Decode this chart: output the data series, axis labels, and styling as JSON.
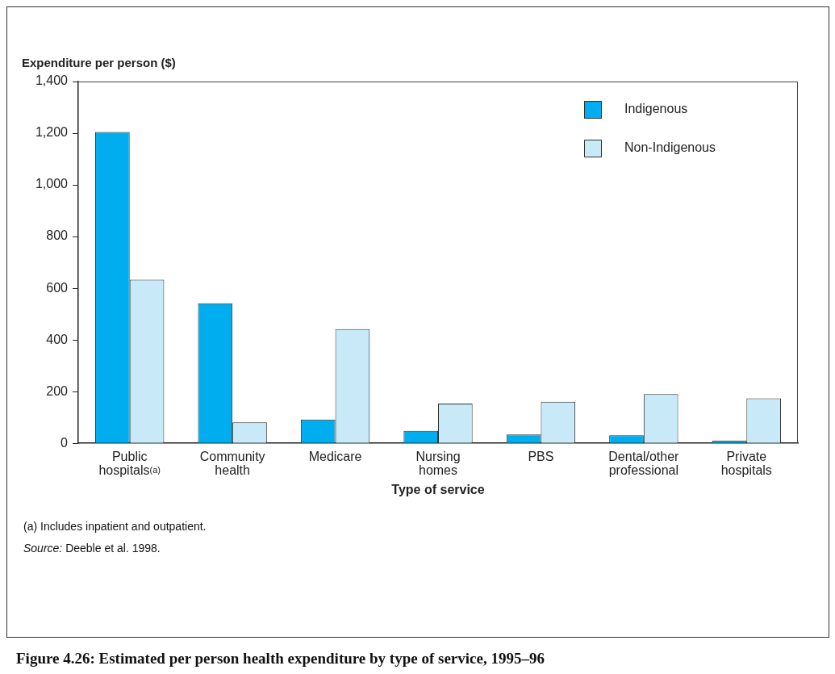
{
  "chart_data": {
    "type": "bar",
    "title": "Figure 4.26: Estimated per person health expenditure by type of service, 1995–96",
    "xlabel": "Type of service",
    "ylabel": "Expenditure per person ($)",
    "categories": [
      "Public hospitals$^{(a)}$",
      "Community health",
      "Medicare",
      "Nursing homes",
      "PBS",
      "Dental/other professional",
      "Private hospitals"
    ],
    "series": [
      {
        "name": "Indigenous",
        "color": "#00aeef",
        "values": [
          1205,
          542,
          92,
          48,
          34,
          31,
          11
        ]
      },
      {
        "name": "Non-Indigenous",
        "color": "#c7e9f8",
        "values": [
          633,
          81,
          442,
          154,
          161,
          190,
          174
        ]
      }
    ],
    "ylim": [
      0,
      1400
    ],
    "yticks": [
      0,
      200,
      400,
      600,
      800,
      {
        "value": 1000,
        "label": "1,000"
      },
      {
        "value": 1200,
        "label": "1,200"
      },
      {
        "value": 1400,
        "label": "1,400"
      }
    ],
    "grid": false,
    "legend": "top right",
    "annotations": [
      "(a) Includes inpatient and outpatient.",
      "Source: Deeble et al. 1998."
    ]
  }
}
